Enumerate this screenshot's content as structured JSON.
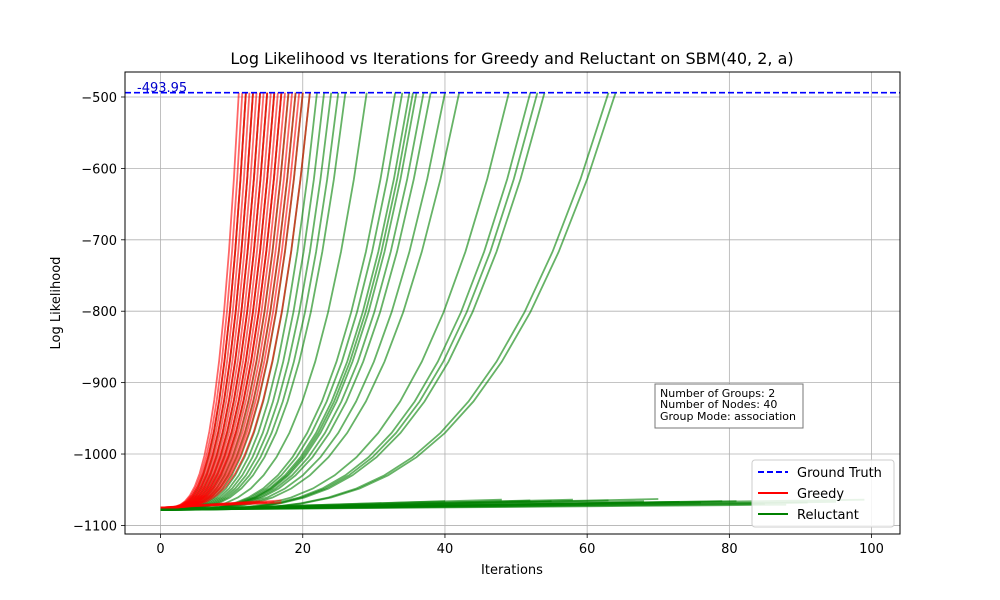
{
  "chart_data": {
    "type": "line",
    "title": "Log Likelihood vs Iterations for Greedy and Reluctant on SBM(40, 2, a)",
    "xlabel": "Iterations",
    "ylabel": "Log Likelihood",
    "xlim": [
      -5,
      104
    ],
    "ylim": [
      -1112,
      -465
    ],
    "xticks": [
      0,
      20,
      40,
      60,
      80,
      100
    ],
    "yticks": [
      -1100,
      -1000,
      -900,
      -800,
      -700,
      -600,
      -500
    ],
    "grid": true,
    "legend_position": "lower-right",
    "ground_truth": {
      "name": "Ground Truth",
      "value": -493.95,
      "label": "-493.95",
      "color": "#0000ff",
      "style": "dashed"
    },
    "series_groups": [
      {
        "name": "Greedy",
        "color": "#ff0000",
        "start": -1075,
        "end": -493.95,
        "converging_run_end_iterations": [
          11,
          11.5,
          12,
          12,
          12.5,
          13,
          13,
          13.5,
          14,
          14,
          14.5,
          15,
          15,
          15.5,
          16,
          16,
          16.5,
          17,
          17,
          17.5,
          18,
          18.5,
          19,
          19.5,
          20,
          21
        ],
        "flat_run_end_iterations": [
          12,
          14,
          15,
          16,
          17,
          17
        ],
        "flat_run_final_values": [
          -1068,
          -1066,
          -1068,
          -1067,
          -1065,
          -1068
        ]
      },
      {
        "name": "Reluctant",
        "color": "#008000",
        "start": -1078,
        "end": -493.95,
        "converging_run_end_iterations": [
          12,
          13,
          14,
          15,
          16,
          17,
          18,
          19,
          20,
          21,
          22,
          23,
          24,
          25,
          26,
          29,
          33,
          34,
          35,
          35.5,
          36,
          37,
          38,
          40,
          42,
          49,
          52,
          53,
          54,
          63,
          64
        ],
        "flat_run_end_iterations": [
          40,
          48,
          52,
          55,
          58,
          63,
          68,
          70,
          73,
          76,
          79,
          81,
          85,
          88,
          91,
          95,
          99
        ],
        "flat_run_final_values": [
          -1066,
          -1064,
          -1065,
          -1066,
          -1064,
          -1065,
          -1066,
          -1063,
          -1067,
          -1068,
          -1066,
          -1066,
          -1070,
          -1071,
          -1068,
          -1067,
          -1064
        ]
      }
    ],
    "info_box": [
      "Number of Groups: 2",
      "Number of Nodes: 40",
      "Group Mode: association"
    ]
  }
}
